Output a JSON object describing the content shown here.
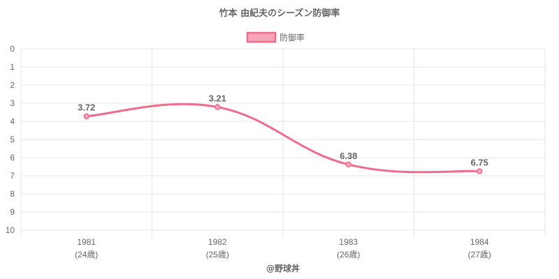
{
  "chart_data": {
    "type": "line",
    "title": "竹本 由紀夫のシーズン防御率",
    "categories": [
      [
        "1981",
        "(24歳)"
      ],
      [
        "1982",
        "(25歳)"
      ],
      [
        "1983",
        "(26歳)"
      ],
      [
        "1984",
        "(27歳)"
      ]
    ],
    "series": [
      {
        "name": "防御率",
        "values": [
          3.72,
          3.21,
          6.38,
          6.75
        ],
        "labels": [
          "3.72",
          "3.21",
          "6.38",
          "6.75"
        ]
      }
    ],
    "ylim": [
      0,
      10
    ],
    "y_reversed": true,
    "y_ticks": [
      "0",
      "1",
      "2",
      "3",
      "4",
      "5",
      "6",
      "7",
      "8",
      "9",
      "10"
    ],
    "grid": true,
    "legend_position": "top",
    "colors": {
      "line": "#f06a8a",
      "fill": "#f7a6b9",
      "grid": "#e6e6e6",
      "text": "#666666"
    }
  },
  "footer": {
    "credit": "@野球丼"
  }
}
